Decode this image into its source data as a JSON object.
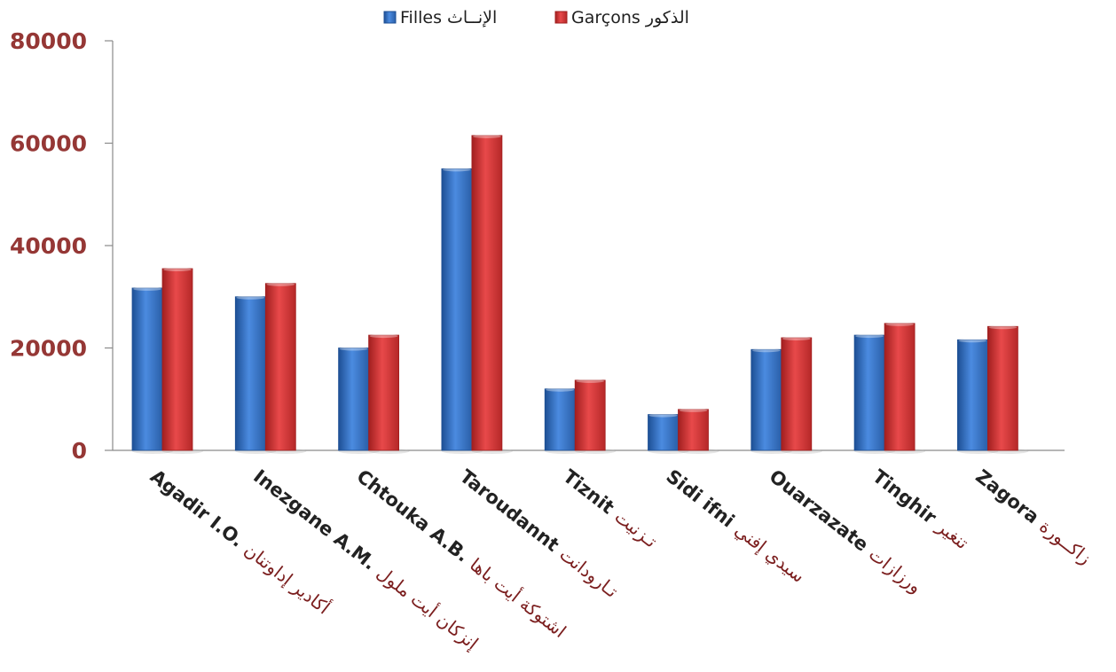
{
  "chart_data": {
    "type": "bar",
    "categories": [
      {
        "latin": "Agadir  I.O.",
        "arabic": "أكادير  إداوتنان"
      },
      {
        "latin": "Inezgane A.M.",
        "arabic": "إنزكان أيت ملول"
      },
      {
        "latin": "Chtouka A.B.",
        "arabic": "اشتوكة أيت  باها"
      },
      {
        "latin": "Taroudannt",
        "arabic": "تـارودانت"
      },
      {
        "latin": "Tiznit",
        "arabic": "تـزنيت"
      },
      {
        "latin": "Sidi ifni",
        "arabic": "سيدي إفني"
      },
      {
        "latin": "Ouarzazate",
        "arabic": "ورزازات"
      },
      {
        "latin": "Tinghir",
        "arabic": "تنغير"
      },
      {
        "latin": "Zagora",
        "arabic": "زاكــورة"
      }
    ],
    "series": [
      {
        "name": "Filles",
        "name_ar": "الإنــاث",
        "color": "#3a78c9",
        "values": [
          31700,
          30000,
          20000,
          55000,
          12000,
          7000,
          19700,
          22500,
          21600
        ]
      },
      {
        "name": "Garçons",
        "name_ar": "الذكور",
        "color": "#d63a3a",
        "values": [
          35500,
          32600,
          22500,
          61500,
          13700,
          8000,
          22000,
          24800,
          24200
        ]
      }
    ],
    "yticks": [
      "0",
      "20000",
      "40000",
      "60000",
      "80000"
    ],
    "ylim": [
      0,
      80000
    ],
    "xlabel": "",
    "ylabel": "",
    "grid": false,
    "legend_position": "top-center",
    "colors": {
      "axis": "#8a8a8a",
      "tick_label": "#953735",
      "arabic_label": "#7b1e1e",
      "latin_label": "#222222"
    }
  }
}
